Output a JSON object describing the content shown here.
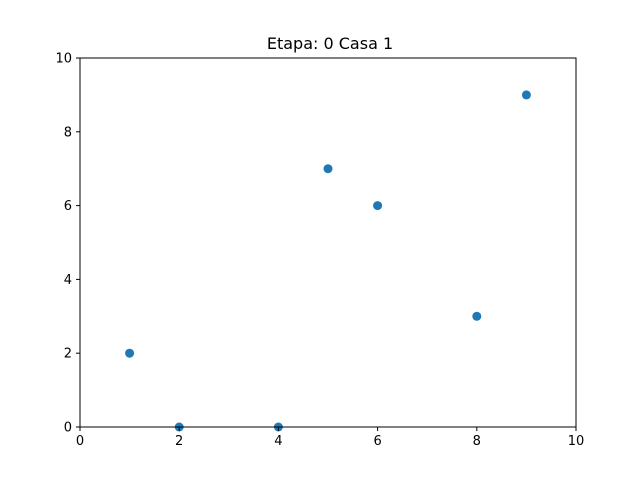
{
  "chart_data": {
    "type": "scatter",
    "title": "Etapa: 0 Casa 1",
    "xlabel": "",
    "ylabel": "",
    "xlim": [
      0,
      10
    ],
    "ylim": [
      0,
      10
    ],
    "xticks": [
      "0",
      "2",
      "4",
      "6",
      "8",
      "10"
    ],
    "yticks": [
      "0",
      "2",
      "4",
      "6",
      "8",
      "10"
    ],
    "grid": false,
    "marker_color": "#1f77b4",
    "points": [
      {
        "x": 1,
        "y": 2
      },
      {
        "x": 2,
        "y": 0
      },
      {
        "x": 4,
        "y": 0
      },
      {
        "x": 5,
        "y": 7
      },
      {
        "x": 6,
        "y": 6
      },
      {
        "x": 8,
        "y": 3
      },
      {
        "x": 9,
        "y": 9
      }
    ]
  }
}
